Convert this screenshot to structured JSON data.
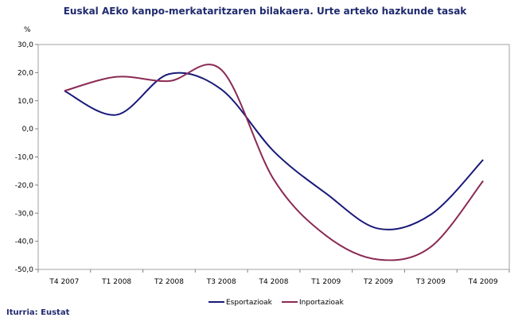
{
  "chart_data": {
    "type": "line",
    "title": "Euskal AEko kanpo-merkataritzaren bilakaera. Urte arteko hazkunde tasak",
    "ylabel": "%",
    "xlabel": "",
    "categories": [
      "T4 2007",
      "T1 2008",
      "T2 2008",
      "T3 2008",
      "T4 2008",
      "T1 2009",
      "T2 2009",
      "T3 2009",
      "T4 2009"
    ],
    "series": [
      {
        "name": "Esportazioak",
        "color": "#1a1a7a",
        "values": [
          13.5,
          5.0,
          19.5,
          14.0,
          -8.0,
          -23.0,
          -35.5,
          -30.5,
          -11.0
        ]
      },
      {
        "name": "Inportazioak",
        "color": "#8b2a55",
        "values": [
          13.5,
          18.5,
          17.0,
          21.0,
          -18.0,
          -38.0,
          -46.5,
          -42.0,
          -18.5
        ]
      }
    ],
    "ylim": [
      -50,
      30
    ],
    "yticks": [
      "30,0",
      "20,0",
      "10,0",
      "0,0",
      "-10,0",
      "-20,0",
      "-30,0",
      "-40,0",
      "-50,0"
    ],
    "grid": false,
    "legend_position": "bottom"
  },
  "source": "Iturria: Eustat"
}
